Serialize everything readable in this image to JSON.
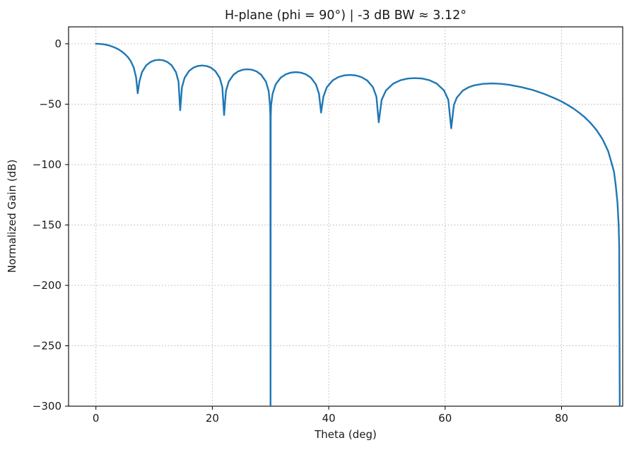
{
  "figure": {
    "title": "H-plane (phi = 90°)  |  -3 dB BW ≈ 3.12°",
    "xlabel": "Theta (deg)",
    "ylabel": "Normalized Gain (dB)"
  },
  "chart_data": {
    "type": "line",
    "title": "H-plane (phi = 90°)  |  -3 dB BW ≈ 3.12°",
    "xlabel": "Theta (deg)",
    "ylabel": "Normalized Gain (dB)",
    "xlim": [
      -4.7,
      90.5
    ],
    "ylim": [
      -300,
      14
    ],
    "xticks": [
      0,
      20,
      40,
      60,
      80
    ],
    "yticks": [
      0,
      -50,
      -100,
      -150,
      -200,
      -250,
      -300
    ],
    "grid": true,
    "legend": "none",
    "line_color": "#1f77b4",
    "grid_color": "#b8b8b8",
    "beamwidth_deg_3dB": 3.12,
    "series": [
      {
        "name": "H-plane normalized gain",
        "points": [
          [
            0,
            0.0
          ],
          [
            0.5,
            -0.1
          ],
          [
            1,
            -0.3
          ],
          [
            1.5,
            -0.6
          ],
          [
            2,
            -1.1
          ],
          [
            2.5,
            -1.8
          ],
          [
            3,
            -2.7
          ],
          [
            3.5,
            -3.7
          ],
          [
            4,
            -5.0
          ],
          [
            4.5,
            -6.6
          ],
          [
            5,
            -8.6
          ],
          [
            5.5,
            -11.1
          ],
          [
            6,
            -14.5
          ],
          [
            6.5,
            -19.7
          ],
          [
            6.9,
            -27.8
          ],
          [
            7.18,
            -41.0
          ],
          [
            7.47,
            -31.3
          ],
          [
            7.91,
            -23.5
          ],
          [
            8.64,
            -17.9
          ],
          [
            9.37,
            -15.1
          ],
          [
            10.1,
            -13.7
          ],
          [
            10.83,
            -13.3
          ],
          [
            11.56,
            -13.7
          ],
          [
            12.29,
            -15.1
          ],
          [
            13.02,
            -17.9
          ],
          [
            13.75,
            -23.5
          ],
          [
            14.19,
            -31.3
          ],
          [
            14.48,
            -55.0
          ],
          [
            14.78,
            -36.0
          ],
          [
            15.23,
            -28.2
          ],
          [
            15.99,
            -22.6
          ],
          [
            16.74,
            -19.8
          ],
          [
            17.5,
            -18.4
          ],
          [
            18.25,
            -18.0
          ],
          [
            19.0,
            -18.4
          ],
          [
            19.76,
            -19.8
          ],
          [
            20.51,
            -22.6
          ],
          [
            21.27,
            -28.2
          ],
          [
            21.72,
            -36.0
          ],
          [
            22.02,
            -59.0
          ],
          [
            22.34,
            -39.1
          ],
          [
            22.82,
            -31.3
          ],
          [
            23.62,
            -25.7
          ],
          [
            24.41,
            -22.9
          ],
          [
            25.21,
            -21.5
          ],
          [
            26.01,
            -21.1
          ],
          [
            26.81,
            -21.5
          ],
          [
            27.61,
            -22.9
          ],
          [
            28.4,
            -25.7
          ],
          [
            29.2,
            -31.3
          ],
          [
            29.68,
            -39.1
          ],
          [
            29.9,
            -50.7
          ],
          [
            29.97,
            -60.0
          ],
          [
            30.0,
            -300.0
          ],
          [
            30.03,
            -60.0
          ],
          [
            30.1,
            -50.7
          ],
          [
            30.35,
            -41.5
          ],
          [
            30.87,
            -33.7
          ],
          [
            31.74,
            -28.1
          ],
          [
            32.6,
            -25.3
          ],
          [
            33.47,
            -23.9
          ],
          [
            34.34,
            -23.5
          ],
          [
            35.21,
            -23.9
          ],
          [
            36.08,
            -25.3
          ],
          [
            36.94,
            -28.1
          ],
          [
            37.81,
            -33.7
          ],
          [
            38.33,
            -41.5
          ],
          [
            38.68,
            -57.0
          ],
          [
            39.08,
            -43.8
          ],
          [
            39.67,
            -36.0
          ],
          [
            40.66,
            -30.4
          ],
          [
            41.65,
            -27.6
          ],
          [
            42.64,
            -26.2
          ],
          [
            43.64,
            -25.8
          ],
          [
            44.63,
            -26.2
          ],
          [
            45.62,
            -27.6
          ],
          [
            46.61,
            -30.4
          ],
          [
            47.6,
            -36.0
          ],
          [
            48.19,
            -43.8
          ],
          [
            48.59,
            -65.0
          ],
          [
            49.09,
            -46.4
          ],
          [
            49.84,
            -38.6
          ],
          [
            51.08,
            -33.0
          ],
          [
            52.33,
            -30.2
          ],
          [
            53.57,
            -28.8
          ],
          [
            54.82,
            -28.4
          ],
          [
            56.06,
            -28.8
          ],
          [
            57.31,
            -30.2
          ],
          [
            58.55,
            -33.0
          ],
          [
            59.8,
            -38.6
          ],
          [
            60.54,
            -46.4
          ],
          [
            61.04,
            -70.0
          ],
          [
            61.5,
            -50.7
          ],
          [
            62,
            -44.6
          ],
          [
            63,
            -38.9
          ],
          [
            64,
            -36.1
          ],
          [
            65,
            -34.4
          ],
          [
            66.5,
            -33.2
          ],
          [
            68,
            -32.8
          ],
          [
            69.6,
            -33.2
          ],
          [
            71,
            -34.0
          ],
          [
            73,
            -35.8
          ],
          [
            75,
            -38.2
          ],
          [
            77,
            -41.5
          ],
          [
            79,
            -45.5
          ],
          [
            80,
            -47.8
          ],
          [
            81,
            -50.5
          ],
          [
            82,
            -53.5
          ],
          [
            83,
            -57.0
          ],
          [
            84,
            -60.9
          ],
          [
            85,
            -65.7
          ],
          [
            86,
            -71.4
          ],
          [
            87,
            -78.7
          ],
          [
            88,
            -88.8
          ],
          [
            88.5,
            -97.1
          ],
          [
            89,
            -105.9
          ],
          [
            89.3,
            -116.9
          ],
          [
            89.6,
            -131.4
          ],
          [
            89.8,
            -149.5
          ],
          [
            89.9,
            -167.0
          ],
          [
            90,
            -300.0
          ]
        ]
      }
    ]
  }
}
